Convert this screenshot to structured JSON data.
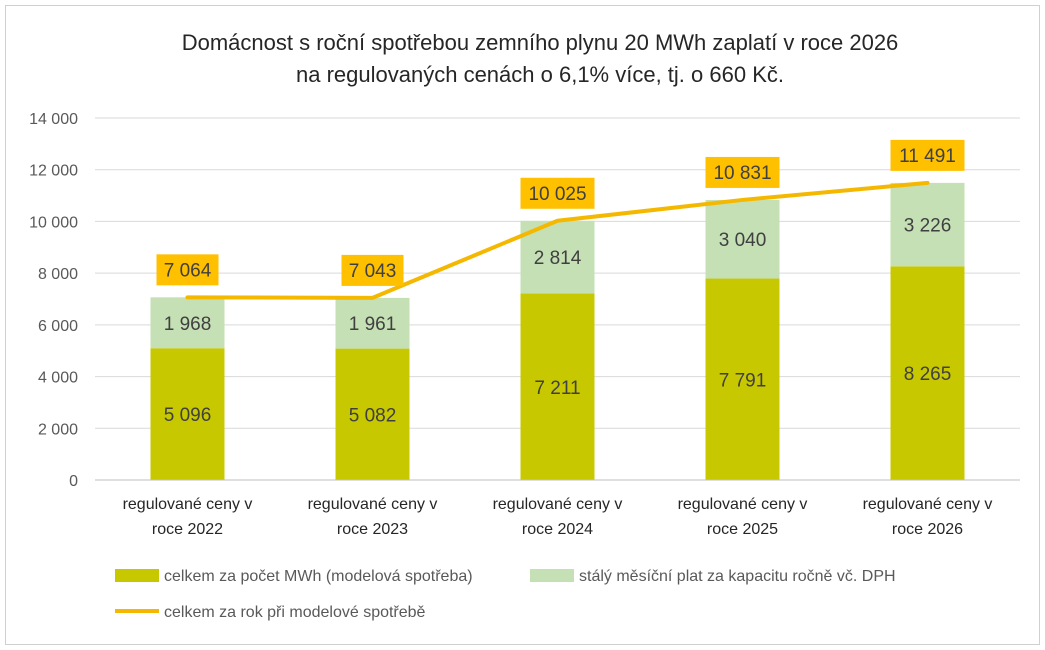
{
  "colors": {
    "mwh": "#c8c800",
    "fixed": "#c5e0b4",
    "total_line": "#f5b800",
    "total_label_bg": "#ffc000",
    "grid": "#d9d9d9"
  },
  "chart_data": {
    "type": "bar",
    "stacked": true,
    "title_line1": "Domácnost s roční spotřebou zemního plynu 20 MWh zaplatí v roce 2026",
    "title_line2": "na regulovaných cenách o 6,1% více, tj. o 660 Kč.",
    "categories": [
      [
        "regulované ceny v",
        "roce 2022"
      ],
      [
        "regulované ceny v",
        "roce 2023"
      ],
      [
        "regulované ceny v",
        "roce 2024"
      ],
      [
        "regulované ceny v",
        "roce 2025"
      ],
      [
        "regulované ceny v",
        "roce 2026"
      ]
    ],
    "series": [
      {
        "name": "celkem za počet MWh (modelová spotřeba)",
        "kind": "bar",
        "values": [
          5096,
          5082,
          7211,
          7791,
          8265
        ],
        "labels": [
          "5 096",
          "5 082",
          "7 211",
          "7 791",
          "8 265"
        ]
      },
      {
        "name": "stálý měsíční plat za kapacitu ročně vč. DPH",
        "kind": "bar",
        "values": [
          1968,
          1961,
          2814,
          3040,
          3226
        ],
        "labels": [
          "1 968",
          "1 961",
          "2 814",
          "3 040",
          "3 226"
        ]
      },
      {
        "name": "celkem za rok při modelové spotřebě",
        "kind": "line",
        "values": [
          7064,
          7043,
          10025,
          10831,
          11491
        ],
        "labels": [
          "7 064",
          "7 043",
          "10 025",
          "10 831",
          "11 491"
        ]
      }
    ],
    "ylim": [
      0,
      14000
    ],
    "yticks": [
      0,
      2000,
      4000,
      6000,
      8000,
      10000,
      12000,
      14000
    ],
    "ytick_labels": [
      "0",
      "2 000",
      "4 000",
      "6 000",
      "8 000",
      "10 000",
      "12 000",
      "14 000"
    ],
    "grid": true,
    "legend_position": "bottom"
  }
}
